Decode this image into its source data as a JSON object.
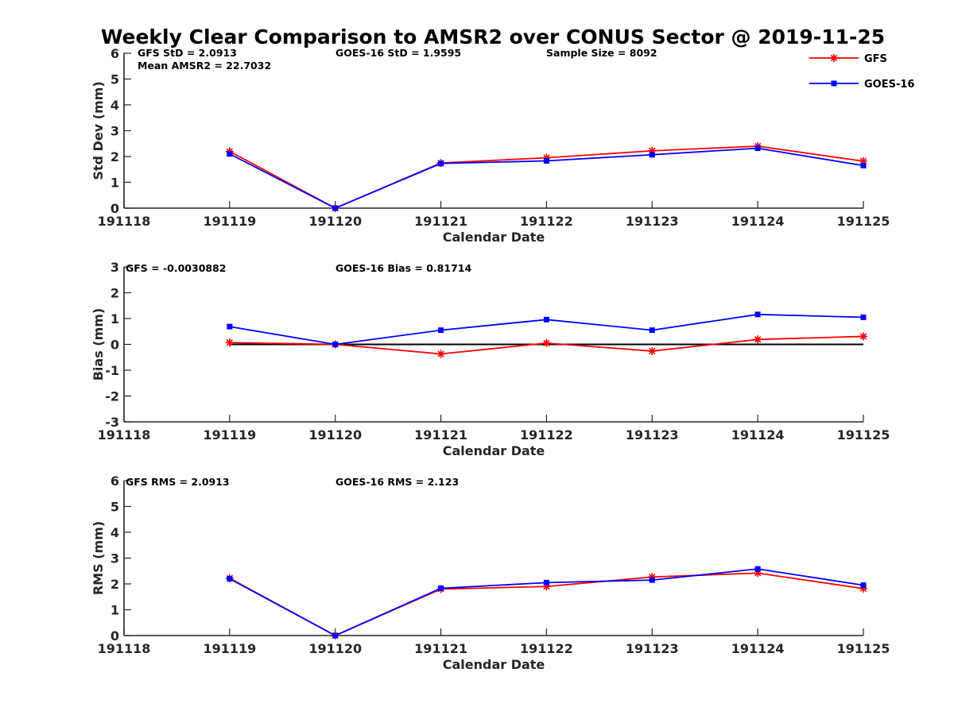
{
  "figure_title": "Weekly Clear Comparison to AMSR2 over CONUS Sector @ 2019-11-25",
  "legend": {
    "placement": "top-right",
    "entries": [
      {
        "name": "GFS",
        "color": "#ff0000",
        "marker": "asterisk"
      },
      {
        "name": "GOES-16",
        "color": "#0000ff",
        "marker": "square"
      }
    ]
  },
  "chart_data": [
    {
      "type": "line",
      "xlabel": "Calendar Date",
      "ylabel": "Std Dev (mm)",
      "x_ticks": [
        "191118",
        "191119",
        "191120",
        "191121",
        "191122",
        "191123",
        "191124",
        "191125"
      ],
      "categories": [
        "191119",
        "191120",
        "191121",
        "191122",
        "191123",
        "191124",
        "191125"
      ],
      "ylim": [
        0,
        6
      ],
      "y_ticks": [
        "0",
        "1",
        "2",
        "3",
        "4",
        "5",
        "6"
      ],
      "annotations": [
        "GFS StD = 2.0913",
        "Mean AMSR2 = 22.7032",
        "GOES-16 StD = 1.9595",
        "Sample Size = 8092"
      ],
      "zero_line": false,
      "series": [
        {
          "name": "GFS",
          "color": "#ff0000",
          "marker": "asterisk",
          "values": [
            2.2,
            0.0,
            1.75,
            1.95,
            2.22,
            2.4,
            1.82
          ]
        },
        {
          "name": "GOES-16",
          "color": "#0000ff",
          "marker": "square",
          "values": [
            2.1,
            0.0,
            1.73,
            1.83,
            2.07,
            2.32,
            1.65
          ]
        }
      ]
    },
    {
      "type": "line",
      "xlabel": "Calendar Date",
      "ylabel": "Bias (mm)",
      "x_ticks": [
        "191118",
        "191119",
        "191120",
        "191121",
        "191122",
        "191123",
        "191124",
        "191125"
      ],
      "categories": [
        "191119",
        "191120",
        "191121",
        "191122",
        "191123",
        "191124",
        "191125"
      ],
      "ylim": [
        -3,
        3
      ],
      "y_ticks": [
        "-3",
        "-2",
        "-1",
        "0",
        "1",
        "2",
        "3"
      ],
      "annotations": [
        "GFS = -0.0030882",
        "GOES-16 Bias  = 0.81714"
      ],
      "zero_line": true,
      "series": [
        {
          "name": "GFS",
          "color": "#ff0000",
          "marker": "asterisk",
          "values": [
            0.07,
            0.0,
            -0.37,
            0.05,
            -0.26,
            0.19,
            0.31
          ]
        },
        {
          "name": "GOES-16",
          "color": "#0000ff",
          "marker": "square",
          "values": [
            0.69,
            0.0,
            0.55,
            0.96,
            0.55,
            1.16,
            1.05
          ]
        }
      ]
    },
    {
      "type": "line",
      "xlabel": "Calendar Date",
      "ylabel": "RMS (mm)",
      "x_ticks": [
        "191118",
        "191119",
        "191120",
        "191121",
        "191122",
        "191123",
        "191124",
        "191125"
      ],
      "categories": [
        "191119",
        "191120",
        "191121",
        "191122",
        "191123",
        "191124",
        "191125"
      ],
      "ylim": [
        0,
        6
      ],
      "y_ticks": [
        "0",
        "1",
        "2",
        "3",
        "4",
        "5",
        "6"
      ],
      "annotations": [
        "GFS RMS = 2.0913",
        "GOES-16 RMS = 2.123"
      ],
      "zero_line": false,
      "series": [
        {
          "name": "GFS",
          "color": "#ff0000",
          "marker": "asterisk",
          "values": [
            2.22,
            0.0,
            1.8,
            1.9,
            2.27,
            2.42,
            1.82
          ]
        },
        {
          "name": "GOES-16",
          "color": "#0000ff",
          "marker": "square",
          "values": [
            2.2,
            0.0,
            1.83,
            2.05,
            2.15,
            2.58,
            1.95
          ]
        }
      ]
    }
  ]
}
